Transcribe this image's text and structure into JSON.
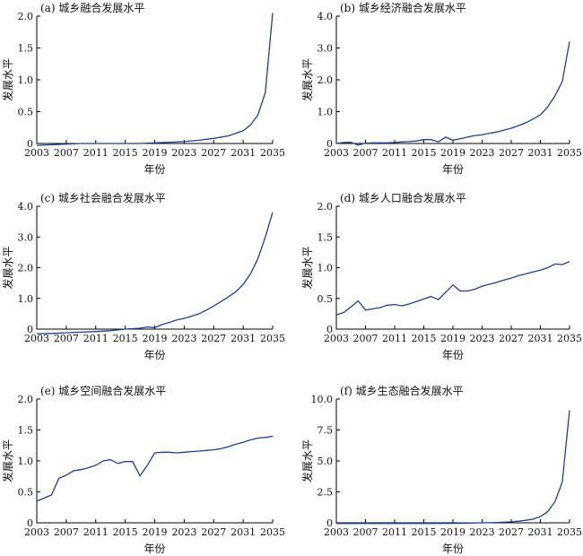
{
  "chart_data": [
    {
      "type": "line",
      "title": "(a) 城乡融合发展水平",
      "xlabel": "年份",
      "ylabel": "发展水平",
      "xticks": [
        "2003",
        "2007",
        "2011",
        "2015",
        "2019",
        "2023",
        "2027",
        "2031",
        "2035"
      ],
      "yticks": [
        "0",
        "0.5",
        "1.0",
        "1.5",
        "2.0"
      ],
      "xlim": [
        2003,
        2035
      ],
      "ylim": [
        0,
        2.0
      ],
      "x": [
        2003,
        2005,
        2007,
        2009,
        2011,
        2013,
        2015,
        2017,
        2019,
        2021,
        2023,
        2025,
        2027,
        2029,
        2030,
        2031,
        2032,
        2033,
        2034,
        2035
      ],
      "values": [
        -0.03,
        -0.02,
        -0.01,
        0.0,
        0.0,
        0.0,
        0.0,
        0.0,
        0.01,
        0.02,
        0.03,
        0.05,
        0.08,
        0.12,
        0.16,
        0.2,
        0.29,
        0.45,
        0.8,
        2.05
      ]
    },
    {
      "type": "line",
      "title": "(b) 城乡经济融合发展水平",
      "xlabel": "年份",
      "ylabel": "发展水平",
      "xticks": [
        "2003",
        "2007",
        "2011",
        "2015",
        "2019",
        "2023",
        "2027",
        "2031",
        "2035"
      ],
      "yticks": [
        "0",
        "1.0",
        "2.0",
        "3.0",
        "4.0"
      ],
      "xlim": [
        2003,
        2035
      ],
      "ylim": [
        0,
        4.0
      ],
      "x": [
        2003,
        2004,
        2005,
        2006,
        2007,
        2008,
        2009,
        2010,
        2011,
        2012,
        2013,
        2014,
        2015,
        2016,
        2017,
        2018,
        2019,
        2020,
        2021,
        2022,
        2023,
        2024,
        2025,
        2026,
        2027,
        2028,
        2029,
        2030,
        2031,
        2032,
        2033,
        2034,
        2035
      ],
      "values": [
        0.0,
        0.03,
        0.04,
        -0.05,
        0.01,
        0.02,
        0.02,
        0.02,
        0.03,
        0.05,
        0.06,
        0.08,
        0.12,
        0.12,
        0.05,
        0.2,
        0.1,
        0.15,
        0.2,
        0.25,
        0.27,
        0.32,
        0.36,
        0.42,
        0.48,
        0.56,
        0.65,
        0.77,
        0.9,
        1.15,
        1.5,
        1.95,
        3.2
      ]
    },
    {
      "type": "line",
      "title": "(c) 城乡社会融合发展水平",
      "xlabel": "年份",
      "ylabel": "发展水平",
      "xticks": [
        "2003",
        "2007",
        "2011",
        "2015",
        "2019",
        "2023",
        "2027",
        "2031",
        "2035"
      ],
      "yticks": [
        "0",
        "1.0",
        "2.0",
        "3.0",
        "4.0"
      ],
      "xlim": [
        2003,
        2035
      ],
      "ylim": [
        0,
        4.0
      ],
      "x": [
        2003,
        2005,
        2007,
        2009,
        2011,
        2013,
        2015,
        2017,
        2018,
        2019,
        2020,
        2021,
        2022,
        2023,
        2024,
        2025,
        2026,
        2027,
        2028,
        2029,
        2030,
        2031,
        2032,
        2033,
        2034,
        2035
      ],
      "values": [
        -0.15,
        -0.14,
        -0.12,
        -0.1,
        -0.08,
        -0.05,
        0.0,
        0.03,
        0.07,
        0.05,
        0.15,
        0.22,
        0.3,
        0.35,
        0.42,
        0.5,
        0.62,
        0.75,
        0.9,
        1.05,
        1.22,
        1.45,
        1.8,
        2.3,
        3.0,
        3.8
      ]
    },
    {
      "type": "line",
      "title": "(d) 城乡人口融合发展水平",
      "xlabel": "年份",
      "ylabel": "发展水平",
      "xticks": [
        "2003",
        "2007",
        "2011",
        "2015",
        "2019",
        "2023",
        "2027",
        "2031",
        "2035"
      ],
      "yticks": [
        "0",
        "0.5",
        "1.0",
        "1.5",
        "2.0"
      ],
      "xlim": [
        2003,
        2035
      ],
      "ylim": [
        0,
        2.0
      ],
      "x": [
        2003,
        2004,
        2005,
        2006,
        2007,
        2008,
        2009,
        2010,
        2011,
        2012,
        2013,
        2014,
        2015,
        2016,
        2017,
        2018,
        2019,
        2020,
        2021,
        2022,
        2023,
        2024,
        2025,
        2026,
        2027,
        2028,
        2029,
        2030,
        2031,
        2032,
        2033,
        2034,
        2035
      ],
      "values": [
        0.23,
        0.27,
        0.36,
        0.46,
        0.31,
        0.33,
        0.35,
        0.39,
        0.4,
        0.38,
        0.41,
        0.45,
        0.49,
        0.53,
        0.48,
        0.6,
        0.72,
        0.62,
        0.62,
        0.65,
        0.7,
        0.73,
        0.76,
        0.8,
        0.83,
        0.87,
        0.9,
        0.93,
        0.96,
        1.0,
        1.06,
        1.05,
        1.1
      ]
    },
    {
      "type": "line",
      "title": "(e) 城乡空间融合发展水平",
      "xlabel": "年份",
      "ylabel": "发展水平",
      "xticks": [
        "2003",
        "2007",
        "2011",
        "2015",
        "2019",
        "2023",
        "2027",
        "2031",
        "2035"
      ],
      "yticks": [
        "0",
        "0.5",
        "1.0",
        "1.5",
        "2.0"
      ],
      "xlim": [
        2003,
        2035
      ],
      "ylim": [
        0,
        2.0
      ],
      "x": [
        2003,
        2004,
        2005,
        2006,
        2007,
        2008,
        2009,
        2010,
        2011,
        2012,
        2013,
        2014,
        2015,
        2016,
        2017,
        2018,
        2019,
        2020,
        2021,
        2022,
        2023,
        2024,
        2025,
        2026,
        2027,
        2028,
        2029,
        2030,
        2031,
        2032,
        2033,
        2034,
        2035
      ],
      "values": [
        0.35,
        0.4,
        0.45,
        0.72,
        0.77,
        0.84,
        0.86,
        0.89,
        0.93,
        1.0,
        1.02,
        0.96,
        0.99,
        0.99,
        0.76,
        0.93,
        1.13,
        1.14,
        1.14,
        1.13,
        1.14,
        1.15,
        1.16,
        1.17,
        1.18,
        1.2,
        1.23,
        1.27,
        1.3,
        1.34,
        1.37,
        1.38,
        1.4
      ]
    },
    {
      "type": "line",
      "title": "(f) 城乡生态融合发展水平",
      "xlabel": "年份",
      "ylabel": "发展水平",
      "xticks": [
        "2003",
        "2007",
        "2011",
        "2015",
        "2019",
        "2023",
        "2027",
        "2031",
        "2035"
      ],
      "yticks": [
        "0",
        "2.5",
        "5.0",
        "7.5",
        "10.0"
      ],
      "xlim": [
        2003,
        2035
      ],
      "ylim": [
        0,
        10.0
      ],
      "x": [
        2003,
        2007,
        2011,
        2015,
        2019,
        2021,
        2023,
        2025,
        2027,
        2028,
        2029,
        2030,
        2031,
        2032,
        2033,
        2034,
        2035
      ],
      "values": [
        -0.05,
        -0.05,
        -0.05,
        -0.05,
        -0.04,
        -0.02,
        0.0,
        0.03,
        0.08,
        0.13,
        0.2,
        0.3,
        0.5,
        0.9,
        1.7,
        3.3,
        9.1
      ]
    }
  ]
}
